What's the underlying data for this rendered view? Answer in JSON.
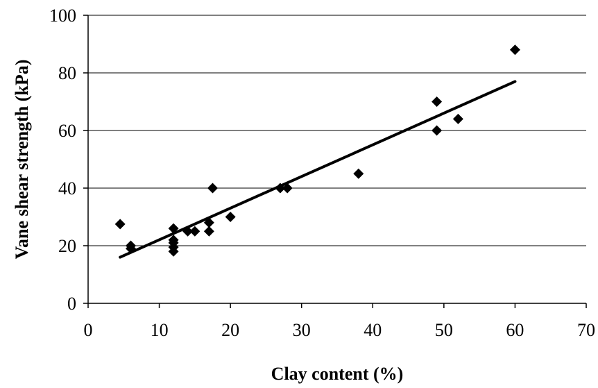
{
  "chart_data": {
    "type": "scatter",
    "title": "",
    "xlabel": "Clay content (%)",
    "ylabel": "Vane shear strength (kPa)",
    "xlim": [
      0,
      70
    ],
    "ylim": [
      0,
      100
    ],
    "x_ticks": [
      0,
      10,
      20,
      30,
      40,
      50,
      60,
      70
    ],
    "y_ticks": [
      0,
      20,
      40,
      60,
      80,
      100
    ],
    "x_tick_labels": [
      "0",
      "10",
      "20",
      "30",
      "40",
      "50",
      "60",
      "70"
    ],
    "y_tick_labels": [
      "0",
      "20",
      "40",
      "60",
      "80",
      "100"
    ],
    "grid": "horizontal",
    "marker": "diamond",
    "marker_color": "#000000",
    "series": [
      {
        "points": [
          [
            4.5,
            27.5
          ],
          [
            6,
            19
          ],
          [
            6,
            20
          ],
          [
            12,
            18
          ],
          [
            12,
            19.5
          ],
          [
            12,
            21
          ],
          [
            12,
            22
          ],
          [
            12,
            26
          ],
          [
            14,
            25
          ],
          [
            15,
            25
          ],
          [
            17,
            25
          ],
          [
            17,
            28
          ],
          [
            17.5,
            40
          ],
          [
            20,
            30
          ],
          [
            27,
            40
          ],
          [
            28,
            40
          ],
          [
            38,
            45
          ],
          [
            49,
            60
          ],
          [
            49,
            70
          ],
          [
            52,
            64
          ],
          [
            60,
            88
          ]
        ]
      }
    ],
    "trendline": {
      "type": "linear",
      "x": [
        4.5,
        60
      ],
      "y": [
        16,
        77
      ]
    }
  }
}
